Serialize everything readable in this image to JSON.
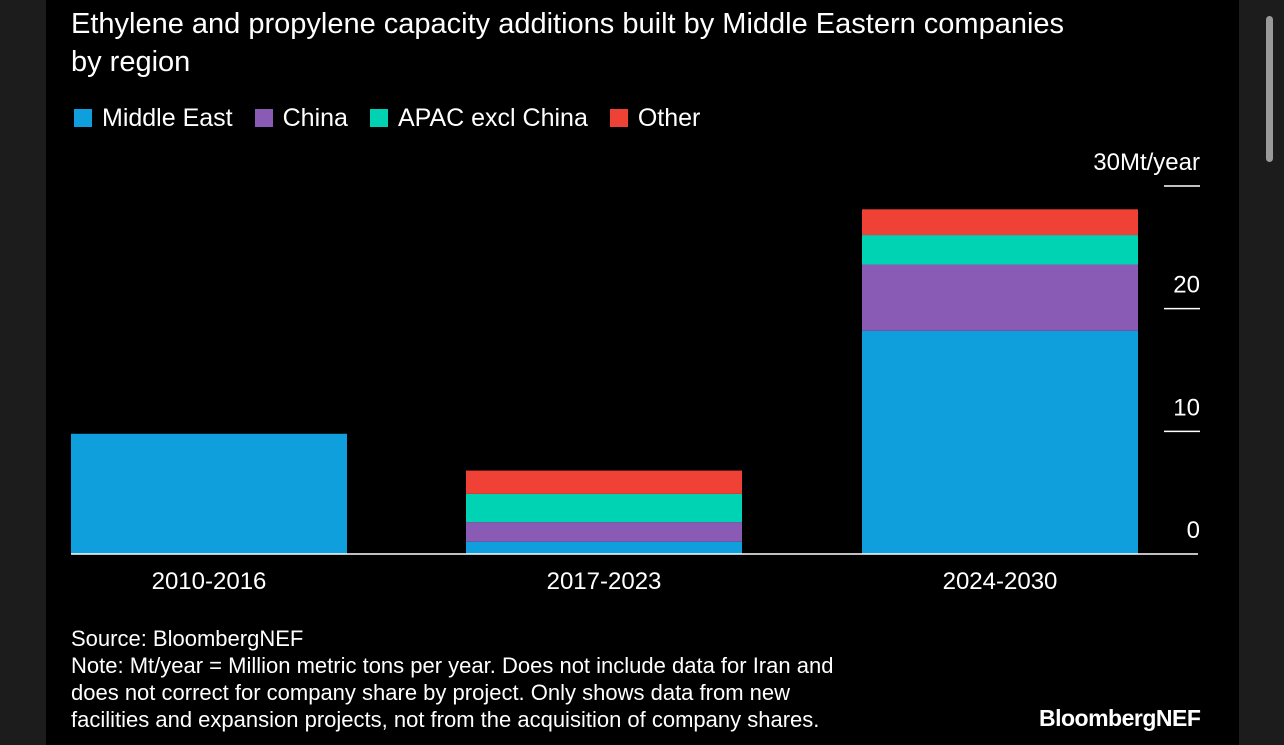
{
  "title": {
    "top_partial": "",
    "line1": "Ethylene and propylene capacity additions built by Middle Eastern companies",
    "line2": "by region"
  },
  "legend": [
    {
      "label": "Middle East",
      "color": "#0f9fdc"
    },
    {
      "label": "China",
      "color": "#8a5bb5"
    },
    {
      "label": "APAC excl China",
      "color": "#00d2b4"
    },
    {
      "label": "Other",
      "color": "#ef4135"
    }
  ],
  "chart_data": {
    "type": "bar",
    "stacked": true,
    "categories": [
      "2010-2016",
      "2017-2023",
      "2024-2030"
    ],
    "series": [
      {
        "name": "Middle East",
        "values": [
          9.8,
          1.0,
          18.2
        ]
      },
      {
        "name": "China",
        "values": [
          0,
          1.6,
          5.4
        ]
      },
      {
        "name": "APAC excl China",
        "values": [
          0,
          2.3,
          2.4
        ]
      },
      {
        "name": "Other",
        "values": [
          0,
          1.9,
          2.1
        ]
      }
    ],
    "ylim": [
      0,
      30
    ],
    "yticks": [
      0,
      10,
      20,
      30
    ],
    "ytick_labels": [
      "0",
      "10",
      "20",
      "30Mt/year"
    ],
    "ylabel": "Mt/year",
    "axis_side": "right"
  },
  "footer": {
    "source": "Source: BloombergNEF",
    "note_lines": [
      "Note: Mt/year = Million metric tons per year. Does not include data for Iran and",
      "does not correct for company share by project. Only shows data from new",
      "facilities and expansion projects, not from the acquisition of company shares."
    ],
    "logo": "BloombergNEF"
  }
}
